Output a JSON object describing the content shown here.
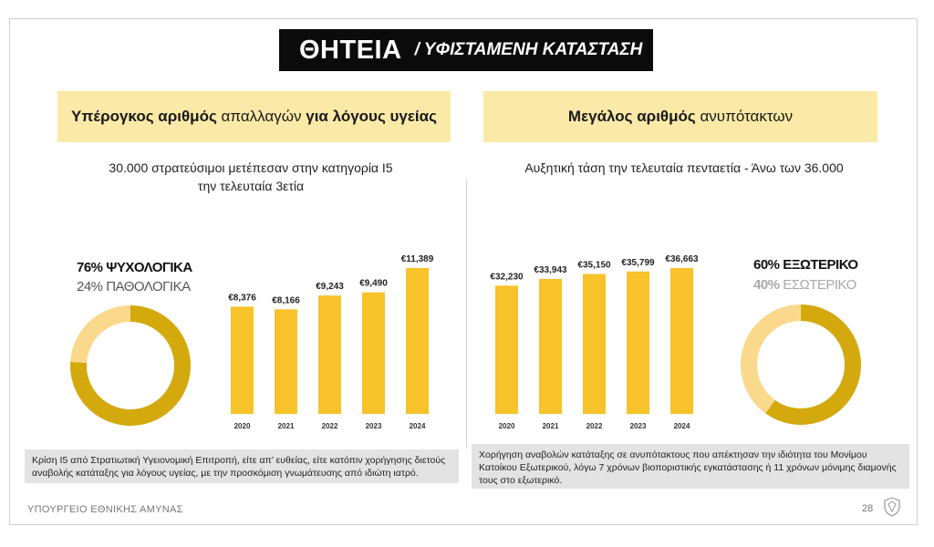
{
  "title": {
    "main": "ΘΗΤΕΙΑ",
    "sub": "/ ΥΦΙΣΤΑΜΕΝΗ ΚΑΤΑΣΤΑΣΗ"
  },
  "left": {
    "banner_bold1": "Υπέρογκος αριθμός",
    "banner_normal": " απαλλαγών ",
    "banner_bold2": "για λόγους υγείας",
    "subtitle_line1": "30.000 στρατεύσιμοι μετέπεσαν στην κατηγορία Ι5",
    "subtitle_line2": "την τελευταία 3ετία",
    "pct1": "76% ΨΥΧΟΛΟΓΙΚΑ",
    "pct2": "24% ΠΑΘΟΛΟΓΙΚΑ",
    "note": "Κρίση Ι5 από Στρατιωτική Υγειονομική Επιτροπή, είτε απ’ ευθείας, είτε κατόπιν χορήγησης διετούς αναβολής κατάταξης για λόγους υγείας, με την προσκόμιση γνωμάτευσης από ιδιώτη ιατρό."
  },
  "right": {
    "banner_bold": "Μεγάλος αριθμός",
    "banner_normal": " ανυπότακτων",
    "subtitle": "Αυξητική τάση την τελευταία πενταετία - Άνω των 36.000",
    "pct1": "60% ΕΞΩΤΕΡΙΚΟ",
    "pct2_num": "40%",
    "pct2_rest": " ΕΣΩΤΕΡΙΚΟ",
    "note": "Χορήγηση αναβολών κατάταξης σε ανυπότακτους που απέκτησαν την ιδιότητα του Μονίμου Κατοίκου Εξωτερικού, λόγω 7 χρόνων βιοποριστικής εγκατάστασης ή 11 χρόνων μόνιμης διαμονής τους στο εξωτερικό."
  },
  "footer": {
    "org": "ΥΠΟΥΡΓΕΙΟ ΕΘΝΙΚΗΣ ΑΜΥΝΑΣ",
    "page": "28"
  },
  "colors": {
    "bar": "#f7c22a",
    "donut_major": "#d4a90e",
    "donut_minor": "#fbd98c",
    "banner": "#fbe9a7"
  },
  "chart_data": [
    {
      "type": "bar",
      "categories": [
        "2020",
        "2021",
        "2022",
        "2023",
        "2024"
      ],
      "values": [
        8376,
        8166,
        9243,
        9490,
        11389
      ],
      "labels": [
        "€8,376",
        "€8,166",
        "€9,243",
        "€9,490",
        "€11,389"
      ]
    },
    {
      "type": "pie",
      "categories": [
        "ΨΥΧΟΛΟΓΙΚΑ",
        "ΠΑΘΟΛΟΓΙΚΑ"
      ],
      "values": [
        76,
        24
      ]
    },
    {
      "type": "bar",
      "categories": [
        "2020",
        "2021",
        "2022",
        "2023",
        "2024"
      ],
      "values": [
        32230,
        33943,
        35150,
        35799,
        36663
      ],
      "labels": [
        "€32,230",
        "€33,943",
        "€35,150",
        "€35,799",
        "€36,663"
      ]
    },
    {
      "type": "pie",
      "categories": [
        "ΕΞΩΤΕΡΙΚΟ",
        "ΕΣΩΤΕΡΙΚΟ"
      ],
      "values": [
        60,
        40
      ]
    }
  ]
}
